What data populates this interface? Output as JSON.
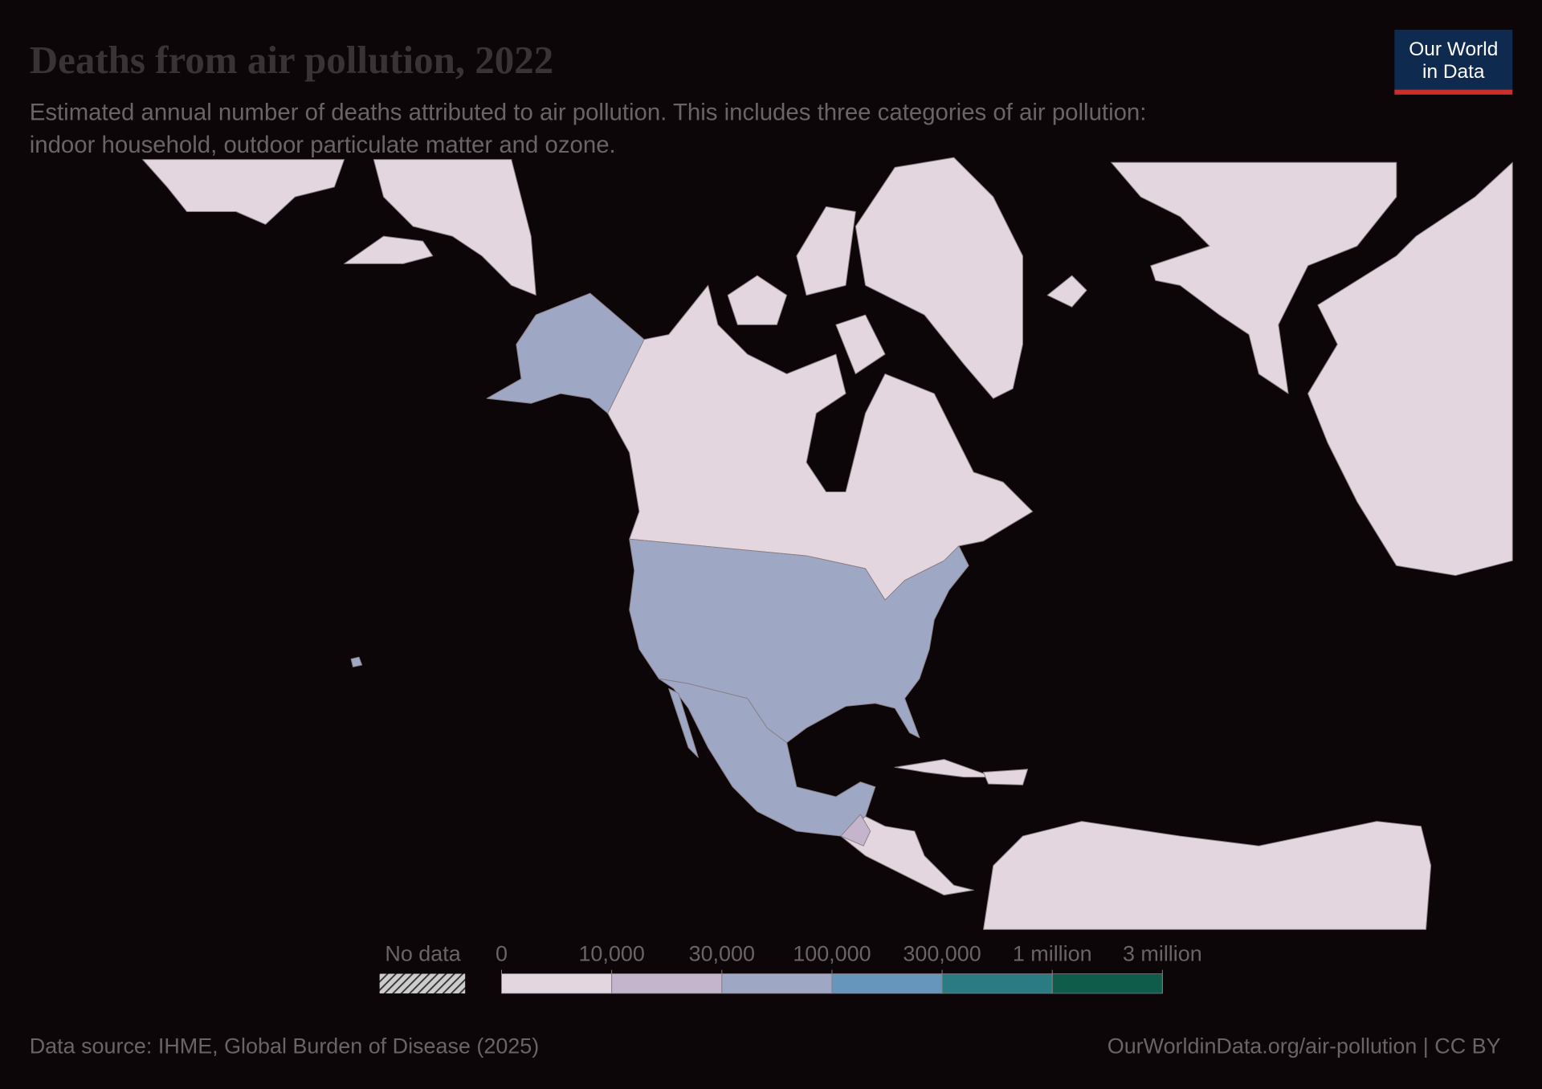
{
  "header": {
    "title": "Deaths from air pollution, 2022",
    "subtitle": [
      "Estimated annual number of deaths attributed to air pollution. This includes three categories of air pollution:",
      "indoor household, outdoor particulate matter and ozone."
    ],
    "logo": [
      "Our World",
      "in Data"
    ]
  },
  "legend": {
    "no_data": "No data",
    "ticks": [
      0,
      {
        "value": 10000,
        "label": "10,000"
      },
      {
        "value": 30000,
        "label": "30,000"
      },
      {
        "value": 100000,
        "label": "100,000"
      },
      {
        "value": 300000,
        "label": "300,000"
      },
      {
        "value": 1000000,
        "label": "1 million"
      },
      {
        "value": 3000000,
        "label": "3 million"
      }
    ],
    "colors": [
      "#e4d6de",
      "#c4b5cc",
      "#9ea8c5",
      "#6696bb",
      "#2a7c82",
      "#0f5c4a"
    ]
  },
  "footer": {
    "source": "Data source: IHME, Global Burden of Disease (2025)",
    "url": "OurWorldinData.org/air-pollution | CC BY"
  }
}
